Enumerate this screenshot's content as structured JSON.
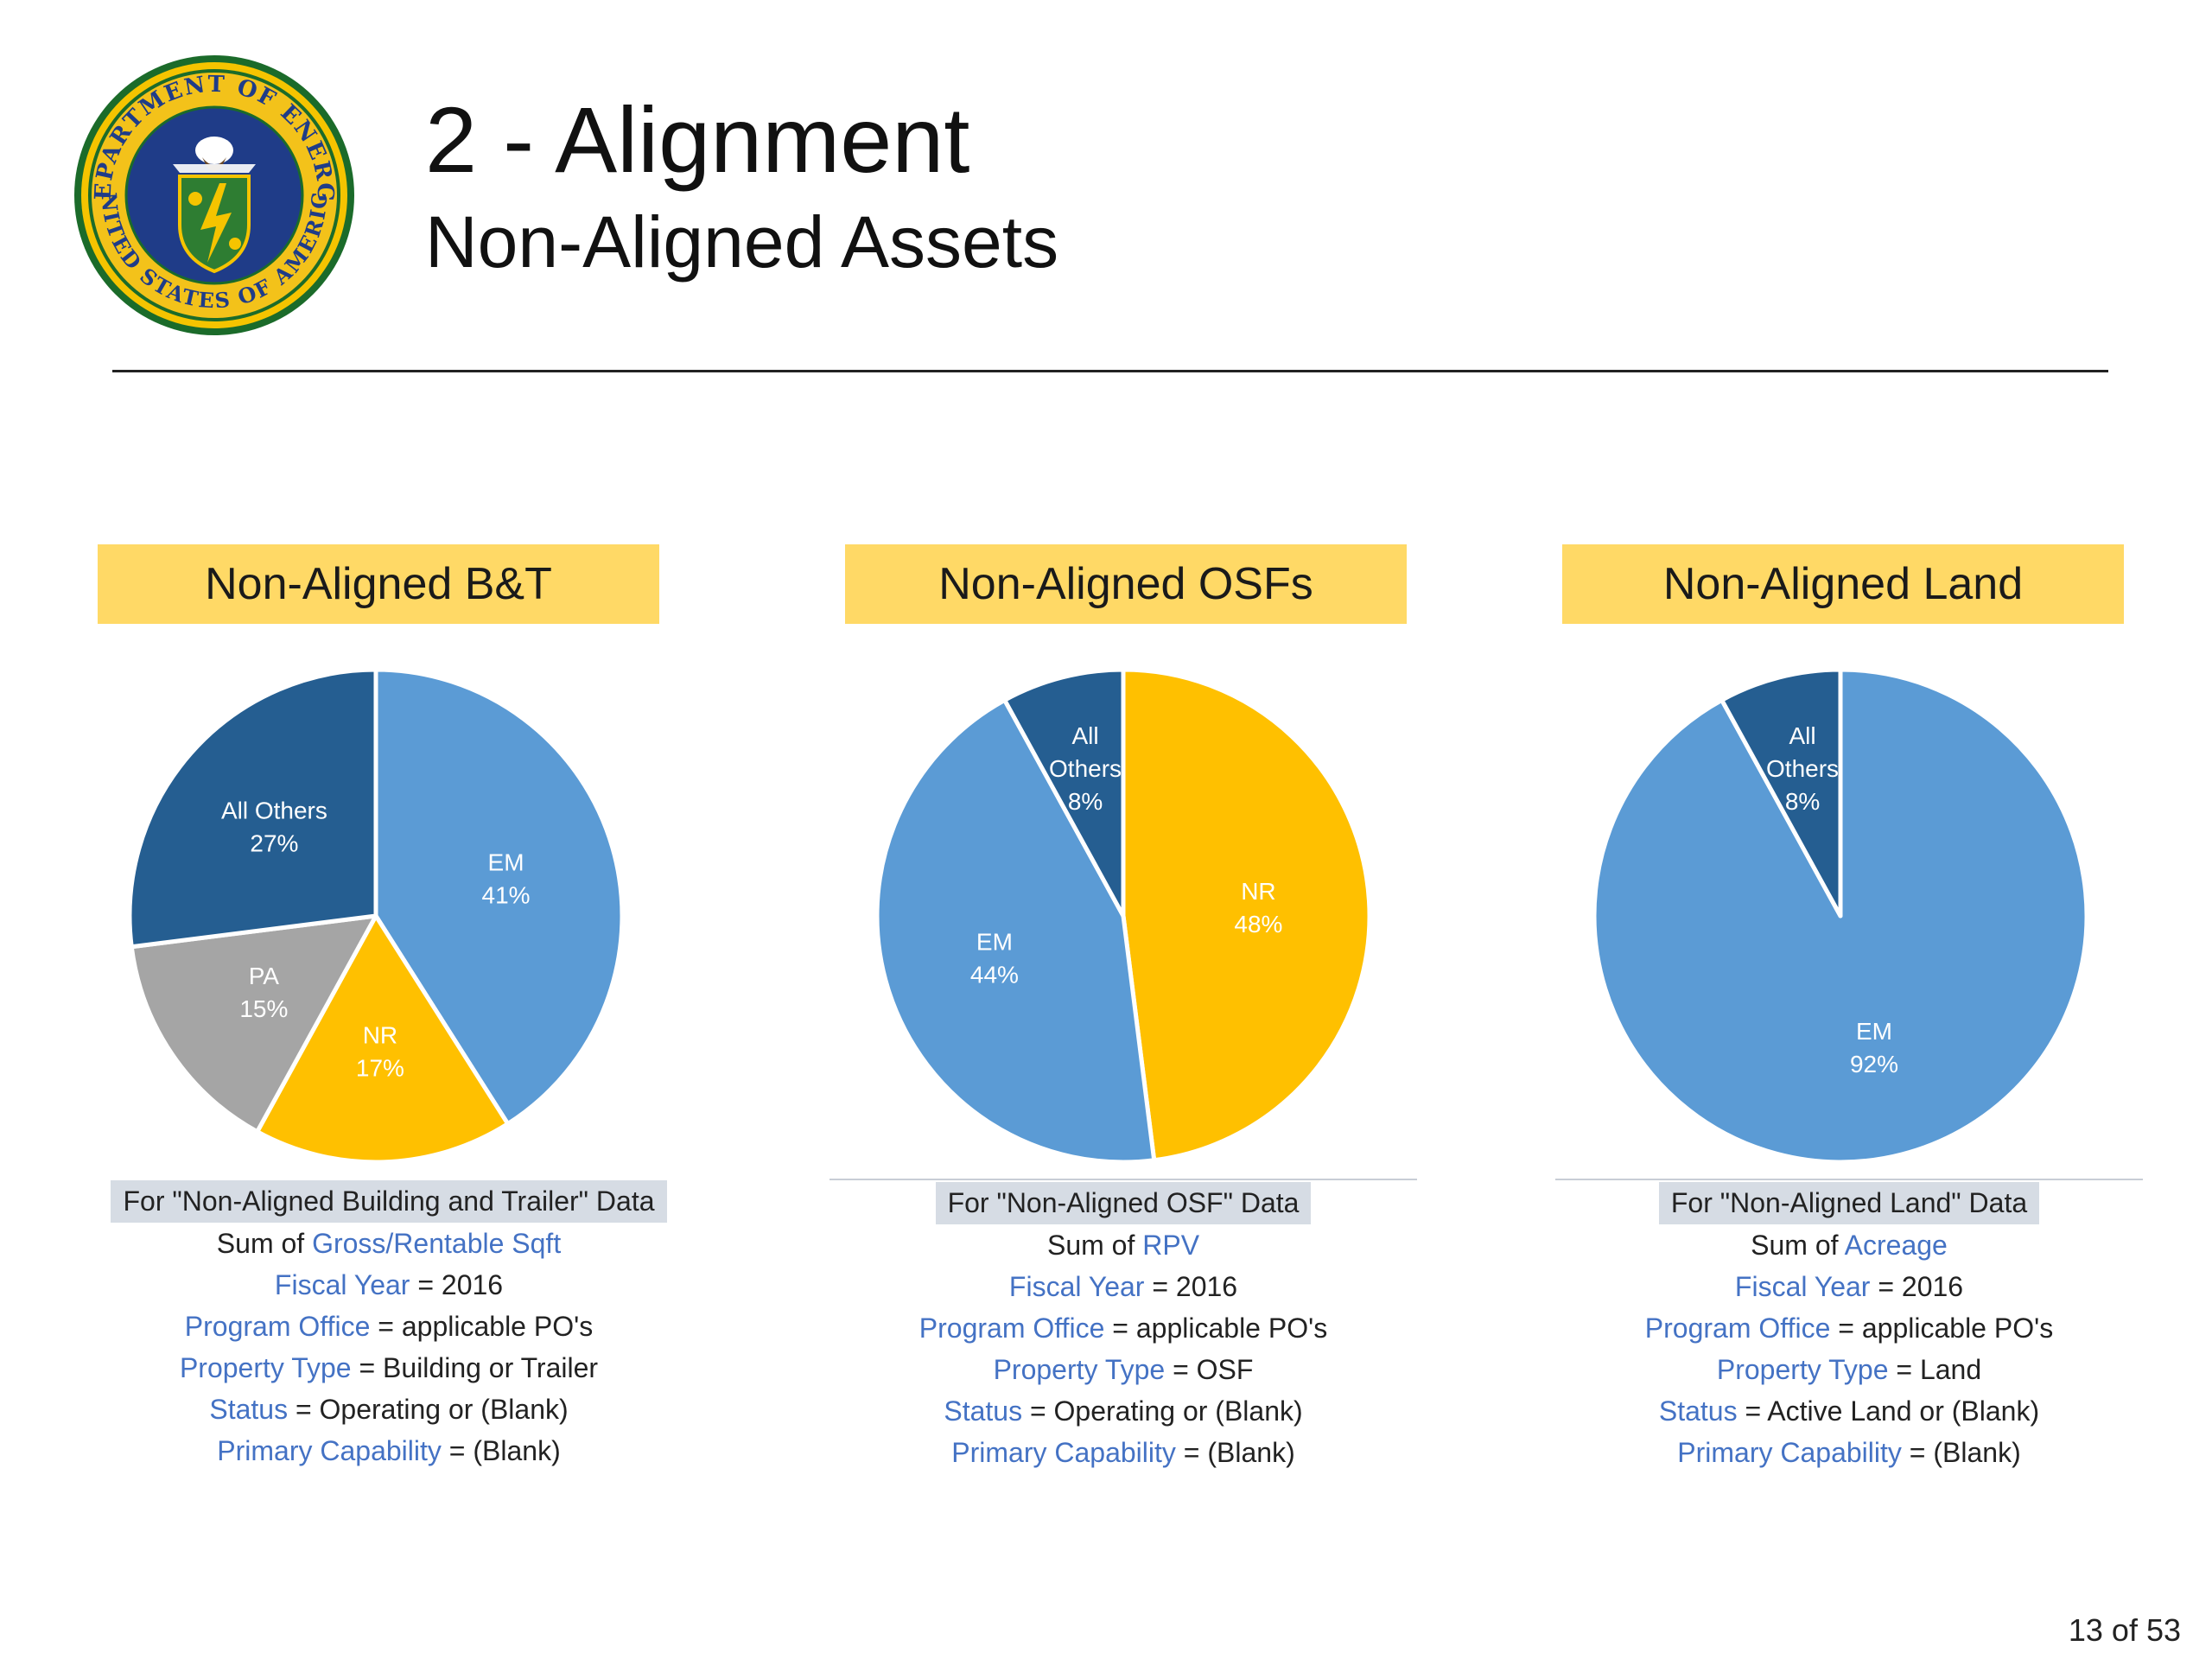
{
  "header": {
    "title": "2 - Alignment",
    "subtitle": "Non-Aligned Assets"
  },
  "seal": {
    "text_top": "DEPARTMENT OF ENERGY",
    "text_bottom": "UNITED STATES OF AMERICA",
    "colors": {
      "ring": "#f5c400",
      "field": "#1f3c88",
      "shield": "#2e7d32"
    }
  },
  "colors": {
    "em": "#5b9bd5",
    "all_others": "#255e91",
    "nr": "#ffc000",
    "pa": "#a5a5a5",
    "panel_header": "#ffd966",
    "key_text": "#4472c4"
  },
  "chart_data": [
    {
      "type": "pie",
      "title": "Non-Aligned B&T",
      "slices": [
        {
          "label": "EM",
          "value": 41,
          "display": "41%",
          "color": "#5b9bd5",
          "text_color": "#ffffff"
        },
        {
          "label": "NR",
          "value": 17,
          "display": "17%",
          "color": "#ffc000",
          "text_color": "#ffffff"
        },
        {
          "label": "PA",
          "value": 15,
          "display": "15%",
          "color": "#a5a5a5",
          "text_color": "#ffffff"
        },
        {
          "label": "All Others",
          "value": 27,
          "display": "27%",
          "color": "#255e91",
          "text_color": "#ffffff"
        }
      ]
    },
    {
      "type": "pie",
      "title": "Non-Aligned OSFs",
      "slices": [
        {
          "label": "NR",
          "value": 48,
          "display": "48%",
          "color": "#ffc000",
          "text_color": "#ffffff"
        },
        {
          "label": "EM",
          "value": 44,
          "display": "44%",
          "color": "#5b9bd5",
          "text_color": "#ffffff"
        },
        {
          "label": "All Others",
          "value": 8,
          "display": "8%",
          "color": "#255e91",
          "text_color": "#ffffff"
        }
      ]
    },
    {
      "type": "pie",
      "title": "Non-Aligned Land",
      "slices": [
        {
          "label": "EM",
          "value": 92,
          "display": "92%",
          "color": "#5b9bd5",
          "text_color": "#ffffff"
        },
        {
          "label": "All Others",
          "value": 8,
          "display": "8%",
          "color": "#255e91",
          "text_color": "#ffffff"
        }
      ]
    }
  ],
  "notes": [
    {
      "heading": "For \"Non-Aligned Building and Trailer\" Data",
      "lines": [
        {
          "prefix": "Sum of ",
          "key": "Gross/Rentable Sqft",
          "value": ""
        },
        {
          "prefix": "",
          "key": "Fiscal Year",
          "value": " = 2016"
        },
        {
          "prefix": "",
          "key": "Program Office",
          "value": " = applicable PO's"
        },
        {
          "prefix": "",
          "key": "Property Type",
          "value": " = Building or Trailer"
        },
        {
          "prefix": "",
          "key": "Status",
          "value": " = Operating or (Blank)"
        },
        {
          "prefix": "",
          "key": "Primary Capability",
          "value": " = (Blank)"
        }
      ]
    },
    {
      "heading": "For \"Non-Aligned OSF\" Data",
      "lines": [
        {
          "prefix": "Sum of ",
          "key": "RPV",
          "value": ""
        },
        {
          "prefix": "",
          "key": "Fiscal Year",
          "value": " = 2016"
        },
        {
          "prefix": "",
          "key": "Program Office",
          "value": " = applicable PO's"
        },
        {
          "prefix": "",
          "key": "Property Type",
          "value": " = OSF"
        },
        {
          "prefix": "",
          "key": "Status",
          "value": " = Operating or (Blank)"
        },
        {
          "prefix": "",
          "key": "Primary Capability",
          "value": " = (Blank)"
        }
      ]
    },
    {
      "heading": "For \"Non-Aligned Land\" Data",
      "lines": [
        {
          "prefix": "Sum of ",
          "key": "Acreage",
          "value": ""
        },
        {
          "prefix": "",
          "key": "Fiscal Year",
          "value": " = 2016"
        },
        {
          "prefix": "",
          "key": "Program Office",
          "value": " = applicable PO's"
        },
        {
          "prefix": "",
          "key": "Property Type",
          "value": " = Land"
        },
        {
          "prefix": "",
          "key": "Status",
          "value": " = Active Land or (Blank)"
        },
        {
          "prefix": "",
          "key": "Primary Capability",
          "value": " = (Blank)"
        }
      ]
    }
  ],
  "footer": {
    "page": "13 of 53"
  }
}
